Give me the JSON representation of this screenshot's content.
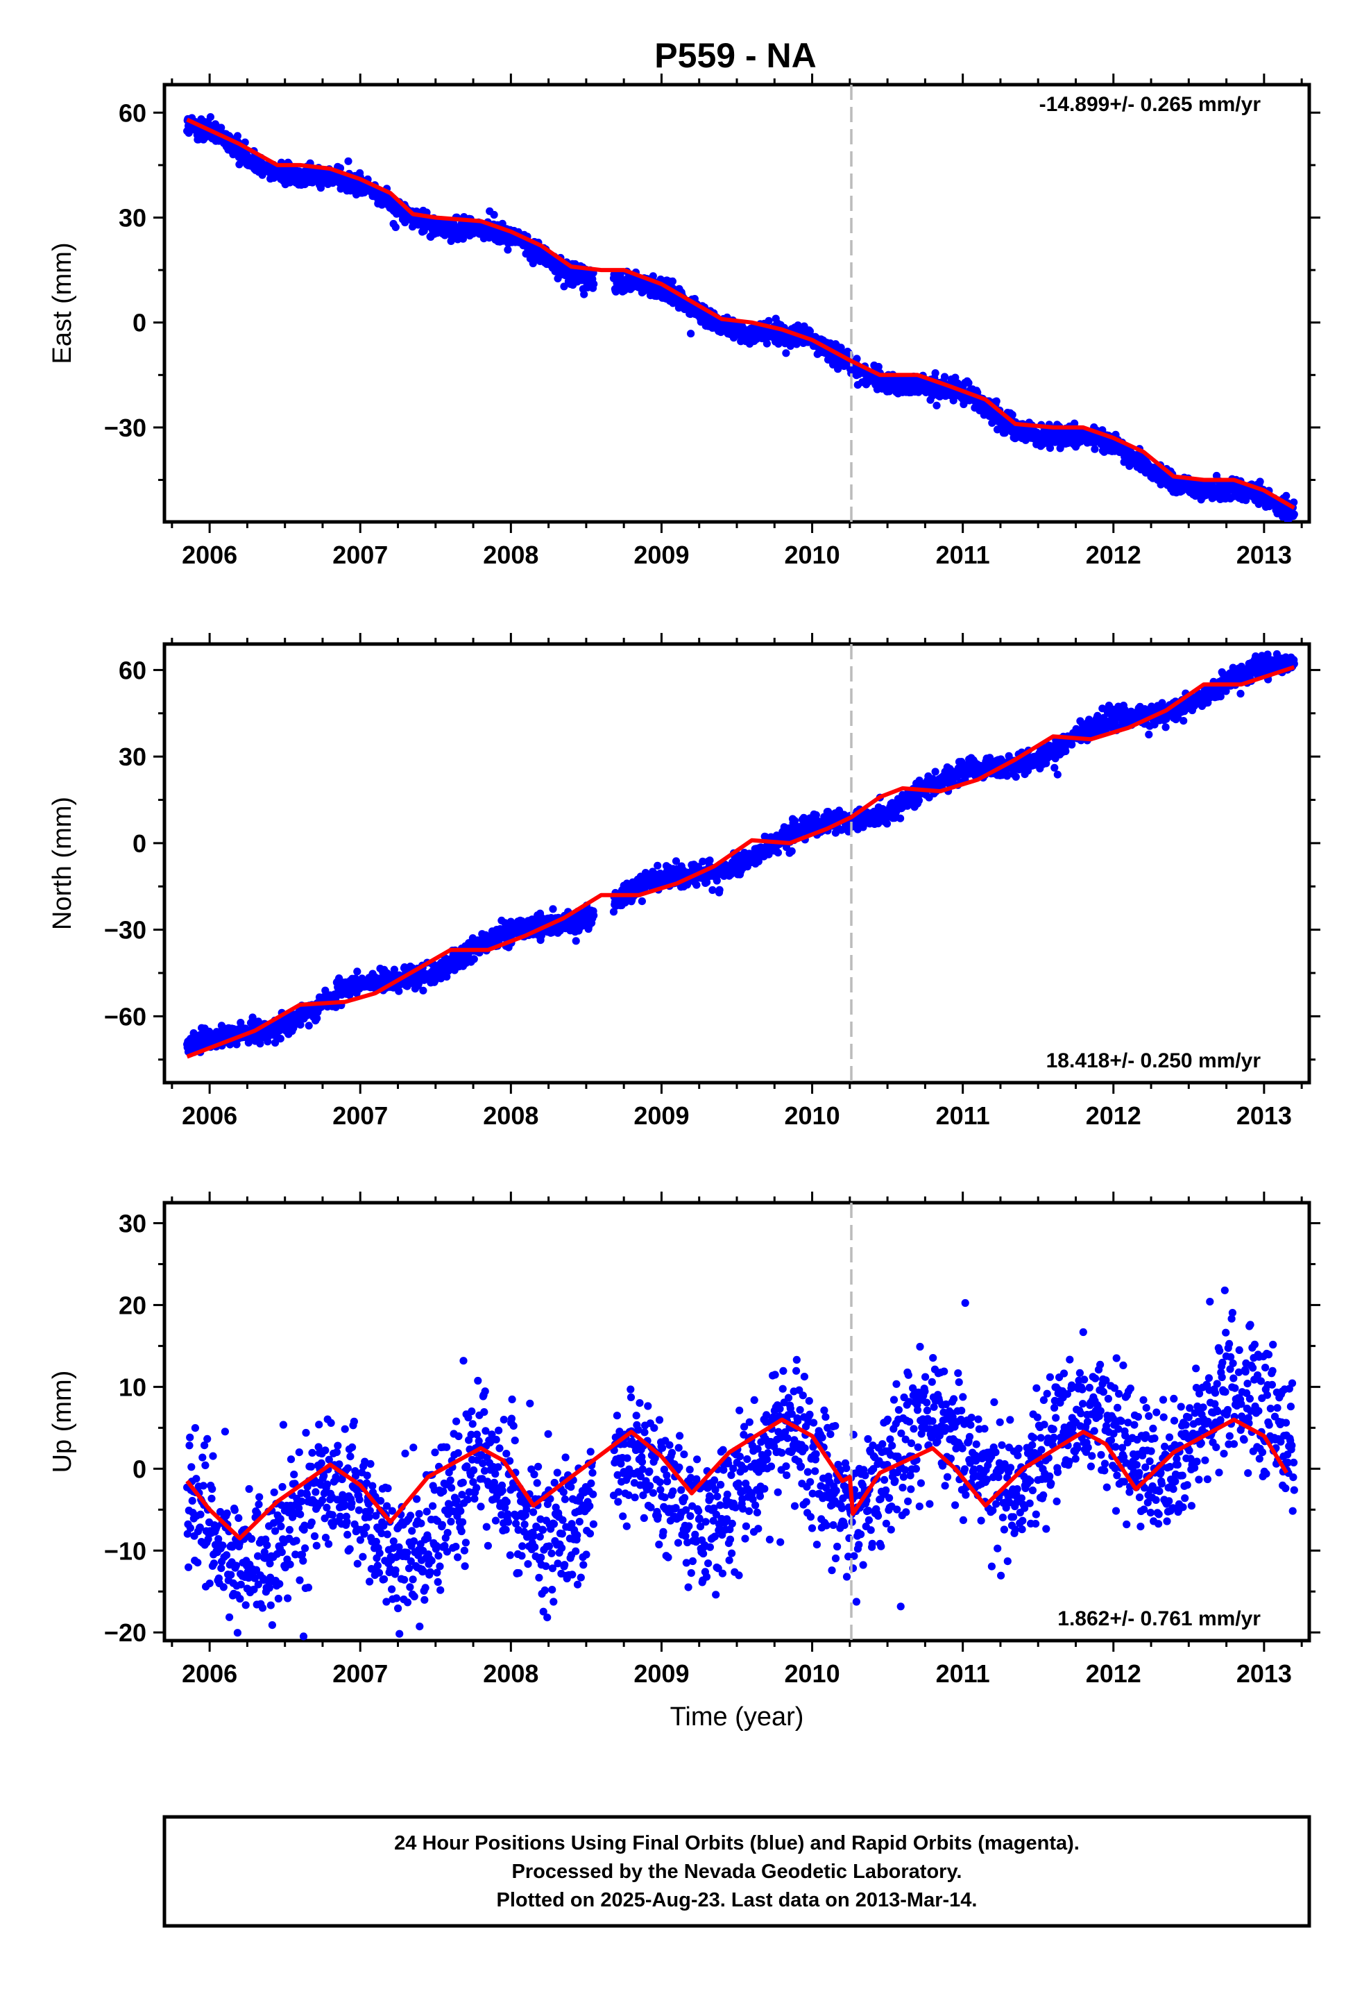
{
  "chart_data": {
    "type": "scatter",
    "title": "P559 - NA",
    "xlabel": "Time (year)",
    "xlim": [
      2005.7,
      2013.3
    ],
    "x_ticks": [
      2006,
      2007,
      2008,
      2009,
      2010,
      2011,
      2012,
      2013
    ],
    "x_tick_labels": [
      "2006",
      "2007",
      "2008",
      "2009",
      "2010",
      "2011",
      "2012",
      "2013"
    ],
    "x_start": 2005.85,
    "x_end": 2013.2,
    "vline_x": 2010.26,
    "series_colors": {
      "points": "#0000ff",
      "fit": "#ff0000",
      "vline": "#bbbbbb"
    },
    "panels": [
      {
        "ylabel": "East (mm)",
        "ylim": [
          -57,
          68
        ],
        "y_ticks": [
          60,
          30,
          0,
          -30
        ],
        "y_tick_labels": [
          "60",
          "30",
          "0",
          "−30"
        ],
        "rate_label": "-14.899+/- 0.265 mm/yr",
        "rate_pos": "top-right",
        "trend": -14.899,
        "offset": -7.5,
        "t0": 2010,
        "amp": 2.5,
        "phase": 0.7,
        "noise": 1.5,
        "fit_x": [
          2005.85,
          2006.0,
          2006.2,
          2006.45,
          2006.6,
          2006.8,
          2007.0,
          2007.2,
          2007.35,
          2007.5,
          2007.8,
          2008.0,
          2008.2,
          2008.4,
          2008.6,
          2008.75,
          2009.0,
          2009.2,
          2009.4,
          2009.6,
          2009.8,
          2010.0,
          2010.26,
          2010.45,
          2010.7,
          2010.9,
          2011.15,
          2011.35,
          2011.6,
          2011.8,
          2012.0,
          2012.2,
          2012.4,
          2012.6,
          2012.8,
          2013.0,
          2013.2
        ],
        "fit_y": [
          58,
          55,
          51,
          45,
          45,
          44,
          41,
          37,
          31,
          30,
          29,
          26,
          22,
          16,
          15,
          15,
          11,
          6,
          1,
          0,
          -2,
          -5,
          -11,
          -15,
          -15,
          -18,
          -22,
          -29,
          -30,
          -30,
          -33,
          -37,
          -44,
          -45,
          -45,
          -48,
          -53
        ]
      },
      {
        "ylabel": "North (mm)",
        "ylim": [
          -83,
          69
        ],
        "y_ticks": [
          60,
          30,
          0,
          -30,
          -60
        ],
        "y_tick_labels": [
          "60",
          "30",
          "0",
          "−30",
          "−60"
        ],
        "rate_label": "18.418+/- 0.250 mm/yr",
        "rate_pos": "bottom-right",
        "trend": 18.418,
        "offset": 4,
        "t0": 2010,
        "amp": 2.5,
        "phase": 0.7,
        "noise": 1.8,
        "fit_x": [
          2005.85,
          2006.0,
          2006.3,
          2006.6,
          2006.9,
          2007.1,
          2007.3,
          2007.6,
          2007.85,
          2008.1,
          2008.35,
          2008.6,
          2008.85,
          2009.1,
          2009.35,
          2009.6,
          2009.85,
          2010.1,
          2010.26,
          2010.45,
          2010.6,
          2010.85,
          2011.1,
          2011.35,
          2011.6,
          2011.85,
          2012.1,
          2012.35,
          2012.6,
          2012.85,
          2013.2
        ],
        "fit_y": [
          -74,
          -71,
          -65,
          -56,
          -55,
          -52,
          -46,
          -37,
          -37,
          -32,
          -26,
          -18,
          -18,
          -14,
          -8,
          1,
          0,
          5,
          9,
          16,
          19,
          18,
          22,
          29,
          37,
          36,
          40,
          46,
          55,
          55,
          61
        ]
      },
      {
        "ylabel": "Up (mm)",
        "ylim": [
          -21,
          32.5
        ],
        "y_ticks": [
          30,
          20,
          10,
          0,
          -10,
          -20
        ],
        "y_tick_labels": [
          "30",
          "20",
          "10",
          "0",
          "−10",
          "−20"
        ],
        "rate_label": "1.862+/- 0.761 mm/yr",
        "rate_pos": "bottom-right",
        "trend": 1.862,
        "offset": -0.5,
        "t0": 2010,
        "amp": 4.5,
        "phase": 0.55,
        "noise": 4.0,
        "fit_x": [
          2005.85,
          2006.0,
          2006.2,
          2006.45,
          2006.8,
          2007.0,
          2007.2,
          2007.45,
          2007.8,
          2007.95,
          2008.15,
          2008.4,
          2008.8,
          2009.0,
          2009.2,
          2009.45,
          2009.8,
          2010.0,
          2010.2,
          2010.25,
          2010.27,
          2010.45,
          2010.8,
          2010.95,
          2011.15,
          2011.4,
          2011.8,
          2011.95,
          2012.15,
          2012.4,
          2012.8,
          2013.0,
          2013.15
        ],
        "fit_y": [
          -1.5,
          -5,
          -8.5,
          -4,
          0.5,
          -2,
          -6.5,
          -1,
          2.5,
          1,
          -4.5,
          -1,
          4.5,
          1.5,
          -3,
          2,
          6,
          4,
          -1.5,
          -1,
          -5.5,
          -0.5,
          2.5,
          0,
          -4.5,
          0,
          4.5,
          3,
          -2.5,
          2,
          6,
          4,
          -0.5
        ]
      }
    ],
    "footer": [
      "24 Hour Positions Using Final Orbits (blue) and Rapid Orbits (magenta).",
      "Processed by the Nevada Geodetic Laboratory.",
      "Plotted on 2025-Aug-23. Last data on 2013-Mar-14."
    ]
  }
}
